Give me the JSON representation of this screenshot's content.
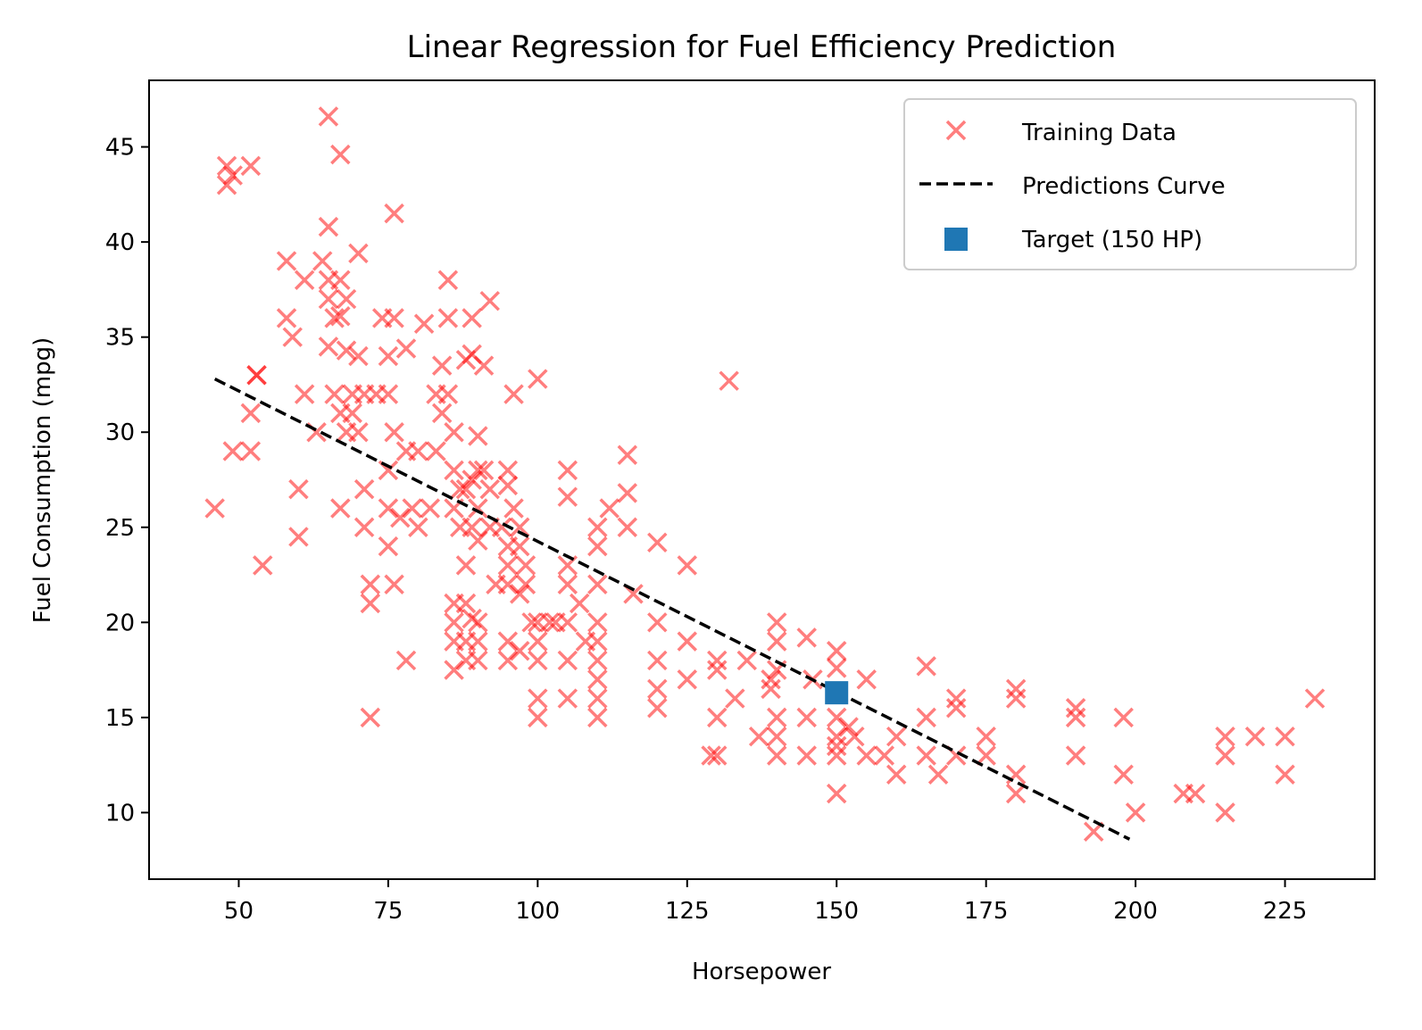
{
  "chart_data": {
    "type": "scatter",
    "title": "Linear Regression for Fuel Efficiency Prediction",
    "xlabel": "Horsepower",
    "ylabel": "Fuel Consumption (mpg)",
    "xlim": [
      35,
      240
    ],
    "ylim": [
      6.5,
      48.5
    ],
    "xticks": [
      50,
      75,
      100,
      125,
      150,
      175,
      200,
      225
    ],
    "yticks": [
      10,
      15,
      20,
      25,
      30,
      35,
      40,
      45
    ],
    "grid": false,
    "legend_position": "top-right",
    "series": [
      {
        "name": "Training Data",
        "kind": "scatter",
        "marker": "x",
        "color": "#ff0000",
        "points": [
          [
            46,
            26
          ],
          [
            48,
            43
          ],
          [
            48,
            44
          ],
          [
            49,
            43.5
          ],
          [
            49,
            29
          ],
          [
            52,
            44
          ],
          [
            52,
            29
          ],
          [
            52,
            31
          ],
          [
            53,
            33
          ],
          [
            53,
            33
          ],
          [
            54,
            23
          ],
          [
            58,
            39
          ],
          [
            58,
            36
          ],
          [
            59,
            35
          ],
          [
            60,
            24.5
          ],
          [
            60,
            27
          ],
          [
            61,
            32
          ],
          [
            61,
            38
          ],
          [
            63,
            30
          ],
          [
            64,
            39
          ],
          [
            65,
            40.8
          ],
          [
            65,
            46.6
          ],
          [
            65,
            38
          ],
          [
            65,
            37
          ],
          [
            65,
            34.5
          ],
          [
            66,
            36
          ],
          [
            66,
            32
          ],
          [
            67,
            44.6
          ],
          [
            67,
            36.1
          ],
          [
            67,
            38
          ],
          [
            67,
            31
          ],
          [
            67,
            26
          ],
          [
            68,
            37
          ],
          [
            68,
            34.3
          ],
          [
            68,
            30
          ],
          [
            69,
            32
          ],
          [
            69,
            31
          ],
          [
            70,
            39.4
          ],
          [
            70,
            34
          ],
          [
            70,
            30
          ],
          [
            71,
            32
          ],
          [
            71,
            27
          ],
          [
            71,
            25
          ],
          [
            72,
            15
          ],
          [
            72,
            21
          ],
          [
            72,
            22
          ],
          [
            73,
            32
          ],
          [
            74,
            36
          ],
          [
            75,
            34
          ],
          [
            75,
            32
          ],
          [
            75,
            28
          ],
          [
            75,
            26
          ],
          [
            75,
            24
          ],
          [
            76,
            41.5
          ],
          [
            76,
            36
          ],
          [
            76,
            30
          ],
          [
            76,
            22
          ],
          [
            77,
            25.5
          ],
          [
            78,
            34.4
          ],
          [
            78,
            29
          ],
          [
            78,
            18
          ],
          [
            79,
            26
          ],
          [
            80,
            25
          ],
          [
            80,
            29
          ],
          [
            81,
            35.7
          ],
          [
            82,
            26
          ],
          [
            83,
            32
          ],
          [
            83,
            29
          ],
          [
            84,
            33.5
          ],
          [
            84,
            31
          ],
          [
            85,
            38
          ],
          [
            85,
            36
          ],
          [
            85,
            32
          ],
          [
            86,
            30
          ],
          [
            86,
            28
          ],
          [
            86,
            26
          ],
          [
            86,
            21
          ],
          [
            86,
            20
          ],
          [
            86,
            19
          ],
          [
            86,
            17.5
          ],
          [
            87,
            27
          ],
          [
            87,
            25
          ],
          [
            88,
            33.8
          ],
          [
            88,
            27
          ],
          [
            88,
            23
          ],
          [
            88,
            21
          ],
          [
            88,
            19
          ],
          [
            88,
            18
          ],
          [
            89,
            36
          ],
          [
            89,
            34.1
          ],
          [
            89,
            27.5
          ],
          [
            89,
            25
          ],
          [
            89,
            20.2
          ],
          [
            90,
            29.8
          ],
          [
            90,
            28
          ],
          [
            90,
            26
          ],
          [
            90,
            24.3
          ],
          [
            90,
            20
          ],
          [
            90,
            19
          ],
          [
            90,
            18
          ],
          [
            91,
            33.5
          ],
          [
            91,
            28
          ],
          [
            92,
            36.9
          ],
          [
            92,
            27
          ],
          [
            92,
            25
          ],
          [
            93,
            22
          ],
          [
            94,
            25
          ],
          [
            95,
            28
          ],
          [
            95,
            27.2
          ],
          [
            95,
            24
          ],
          [
            95,
            23
          ],
          [
            95,
            22
          ],
          [
            95,
            19
          ],
          [
            95,
            18
          ],
          [
            96,
            32
          ],
          [
            96,
            26
          ],
          [
            97,
            25
          ],
          [
            97,
            24
          ],
          [
            97,
            21.5
          ],
          [
            97,
            18.5
          ],
          [
            98,
            23
          ],
          [
            98,
            22
          ],
          [
            99,
            20
          ],
          [
            100,
            32.8
          ],
          [
            100,
            20
          ],
          [
            100,
            19
          ],
          [
            100,
            18
          ],
          [
            100,
            16
          ],
          [
            100,
            15
          ],
          [
            102,
            20
          ],
          [
            103,
            20
          ],
          [
            105,
            28
          ],
          [
            105,
            26.6
          ],
          [
            105,
            23
          ],
          [
            105,
            22
          ],
          [
            105,
            20
          ],
          [
            105,
            18
          ],
          [
            105,
            16
          ],
          [
            107,
            21
          ],
          [
            108,
            19
          ],
          [
            110,
            25
          ],
          [
            110,
            24
          ],
          [
            110,
            22
          ],
          [
            110,
            20
          ],
          [
            110,
            19
          ],
          [
            110,
            18
          ],
          [
            110,
            17
          ],
          [
            110,
            16
          ],
          [
            110,
            15
          ],
          [
            112,
            26
          ],
          [
            115,
            28.8
          ],
          [
            115,
            26.8
          ],
          [
            115,
            25
          ],
          [
            116,
            21.5
          ],
          [
            120,
            24.2
          ],
          [
            120,
            20
          ],
          [
            120,
            18
          ],
          [
            120,
            16.5
          ],
          [
            120,
            15.5
          ],
          [
            125,
            23
          ],
          [
            125,
            19
          ],
          [
            125,
            17
          ],
          [
            129,
            13
          ],
          [
            130,
            18
          ],
          [
            130,
            17.5
          ],
          [
            130,
            15
          ],
          [
            130,
            13
          ],
          [
            132,
            32.7
          ],
          [
            133,
            16
          ],
          [
            135,
            18
          ],
          [
            137,
            14
          ],
          [
            139,
            17
          ],
          [
            139,
            16.5
          ],
          [
            140,
            20
          ],
          [
            140,
            19
          ],
          [
            140,
            17.5
          ],
          [
            140,
            15
          ],
          [
            140,
            14
          ],
          [
            140,
            13
          ],
          [
            145,
            19.2
          ],
          [
            145,
            15
          ],
          [
            145,
            13
          ],
          [
            146,
            17
          ],
          [
            150,
            18.5
          ],
          [
            150,
            17.6
          ],
          [
            150,
            15
          ],
          [
            150,
            14
          ],
          [
            150,
            13.5
          ],
          [
            150,
            13
          ],
          [
            150,
            11
          ],
          [
            152,
            14.5
          ],
          [
            153,
            14
          ],
          [
            155,
            17
          ],
          [
            155,
            13
          ],
          [
            158,
            13
          ],
          [
            160,
            14
          ],
          [
            160,
            12
          ],
          [
            165,
            17.7
          ],
          [
            165,
            15
          ],
          [
            165,
            13
          ],
          [
            167,
            12
          ],
          [
            170,
            16
          ],
          [
            170,
            15.5
          ],
          [
            170,
            13
          ],
          [
            175,
            14
          ],
          [
            175,
            13
          ],
          [
            180,
            16.5
          ],
          [
            180,
            16
          ],
          [
            180,
            12
          ],
          [
            180,
            11
          ],
          [
            190,
            15.5
          ],
          [
            190,
            15
          ],
          [
            190,
            13
          ],
          [
            193,
            9
          ],
          [
            198,
            15
          ],
          [
            198,
            12
          ],
          [
            200,
            10
          ],
          [
            208,
            11
          ],
          [
            210,
            11
          ],
          [
            215,
            14
          ],
          [
            215,
            13
          ],
          [
            215,
            10
          ],
          [
            220,
            14
          ],
          [
            225,
            14
          ],
          [
            225,
            12
          ],
          [
            230,
            16
          ]
        ]
      },
      {
        "name": "Predictions Curve",
        "kind": "line",
        "style": "dashed",
        "color": "#000000",
        "x": [
          46,
          199
        ],
        "y": [
          32.8,
          8.6
        ]
      },
      {
        "name": "Target (150 HP)",
        "kind": "scatter",
        "marker": "square",
        "color": "#1f77b4",
        "points": [
          [
            150,
            16.3
          ]
        ]
      }
    ]
  }
}
